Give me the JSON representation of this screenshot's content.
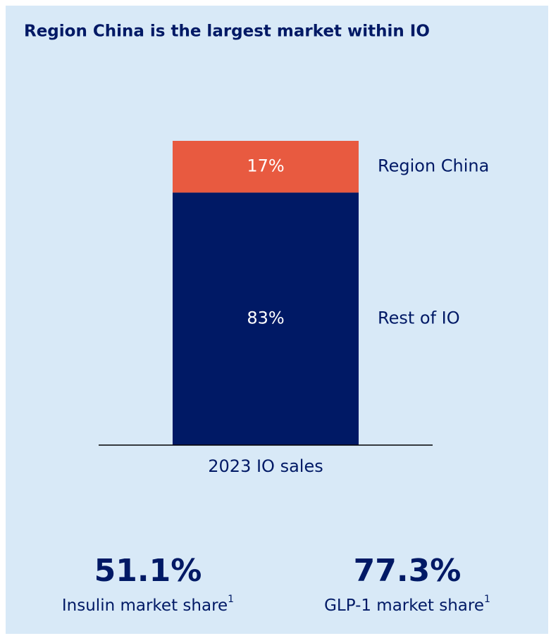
{
  "chart_data": {
    "type": "stacked_bar",
    "title": "Region China is the largest market within IO",
    "categories": [
      "2023 IO sales"
    ],
    "series": [
      {
        "name": "Rest of IO",
        "color": "#001965",
        "values": [
          83
        ],
        "value_labels": [
          "83%"
        ]
      },
      {
        "name": "Region China",
        "color": "#e85a40",
        "values": [
          17
        ],
        "value_labels": [
          "17%"
        ]
      }
    ]
  },
  "stats": [
    {
      "value": "51.1%",
      "label": "Insulin market share",
      "sup": "1"
    },
    {
      "value": "77.3%",
      "label": "GLP-1 market share",
      "sup": "1"
    }
  ]
}
